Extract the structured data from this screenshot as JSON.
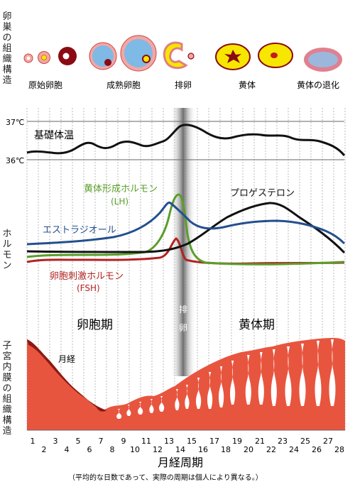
{
  "side_labels": {
    "ovary_structure": "卵巣の組織構造",
    "hormone": "ホルモン",
    "endometrium_structure": "子宮内膜の組織構造"
  },
  "ovary_stages": {
    "primordial": "原始卵胞",
    "mature": "成熟卵胞",
    "ovulation": "排卵",
    "corpus_luteum": "黄体",
    "regression": "黄体の退化"
  },
  "temperature": {
    "high_label": "37℃",
    "low_label": "36℃",
    "title": "基礎体温"
  },
  "hormones": {
    "lh": {
      "name": "黄体形成ホルモン",
      "abbr": "(LH)",
      "color": "#5a9e2a"
    },
    "estrogen": {
      "name": "エストラジオール",
      "color": "#234f8e"
    },
    "progesterone": {
      "name": "プロゲステロン",
      "color": "#111111"
    },
    "fsh": {
      "name": "卵胞刺激ホルモン",
      "abbr": "(FSH)",
      "color": "#b22222"
    }
  },
  "ovulation_band": {
    "label_1": "排",
    "label_2": "卵"
  },
  "phases": {
    "follicular": "卵胞期",
    "luteal": "黄体期"
  },
  "menstruation": "月経",
  "x_axis": {
    "days": [
      "1",
      "2",
      "3",
      "4",
      "5",
      "6",
      "7",
      "8",
      "9",
      "10",
      "11",
      "12",
      "13",
      "14",
      "15",
      "16",
      "17",
      "18",
      "19",
      "20",
      "21",
      "22",
      "23",
      "24",
      "25",
      "26",
      "27",
      "28"
    ],
    "title": "月経周期",
    "note": "（平均的な日数であって、実際の周期は個人により異なる。）"
  },
  "colors": {
    "endometrium": "#e8553f",
    "menstrual": "#8b1a12",
    "cell_pink": "#f2a7a3",
    "cell_yellow": "#f7e600",
    "cell_dark": "#8b0b12"
  }
}
